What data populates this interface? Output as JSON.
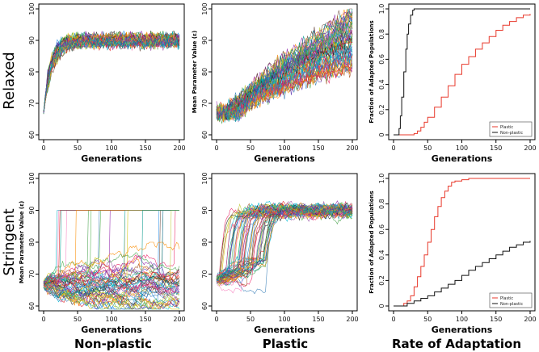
{
  "row_labels": [
    "Relaxed",
    "Stringent"
  ],
  "column_labels": [
    "Non-plastic",
    "Plastic",
    "Rate of Adaptation"
  ],
  "chart_data": [
    {
      "id": "relaxed-nonplastic",
      "type": "line",
      "row": "Relaxed",
      "column": "Non-plastic",
      "xlabel": "Generations",
      "ylabel": "",
      "xlim": [
        0,
        200
      ],
      "ylim": [
        60,
        100
      ],
      "xticks": [
        "0",
        "50",
        "100",
        "150",
        "200"
      ],
      "yticks": [
        "60",
        "70",
        "80",
        "90",
        "100"
      ],
      "series_summary": {
        "n_replicates": 60,
        "start": 67,
        "plateau": 90,
        "noise": 1.8
      }
    },
    {
      "id": "relaxed-plastic",
      "type": "line",
      "row": "Relaxed",
      "column": "Plastic",
      "xlabel": "Generations",
      "ylabel": "Mean Parameter Value (ε)",
      "xlim": [
        0,
        200
      ],
      "ylim": [
        60,
        100
      ],
      "xticks": [
        "0",
        "50",
        "100",
        "150",
        "200"
      ],
      "yticks": [
        "60",
        "70",
        "80",
        "90",
        "100"
      ],
      "series_summary": {
        "n_replicates": 60,
        "start": 67,
        "end_range": [
          80,
          100
        ],
        "noise": 2.5
      }
    },
    {
      "id": "relaxed-rate",
      "type": "line",
      "row": "Relaxed",
      "column": "Rate of Adaptation",
      "xlabel": "Generations",
      "ylabel": "Fraction of Adapted Populations",
      "xlim": [
        0,
        200
      ],
      "ylim": [
        0,
        1
      ],
      "xticks": [
        "0",
        "50",
        "100",
        "150",
        "200"
      ],
      "yticks": [
        "0",
        "0.2",
        "0.4",
        "0.6",
        "0.8",
        "1.0"
      ],
      "legend": {
        "position": "bottom-right",
        "entries": [
          "Plastic",
          "Non-plastic"
        ]
      },
      "series": [
        {
          "name": "Plastic",
          "color": "#e8392b",
          "x": [
            0,
            20,
            30,
            35,
            40,
            45,
            50,
            60,
            70,
            80,
            90,
            100,
            110,
            120,
            130,
            140,
            150,
            160,
            170,
            180,
            190,
            200
          ],
          "values": [
            0,
            0,
            0.01,
            0.03,
            0.06,
            0.1,
            0.14,
            0.22,
            0.3,
            0.39,
            0.48,
            0.56,
            0.62,
            0.68,
            0.73,
            0.78,
            0.83,
            0.87,
            0.9,
            0.93,
            0.95,
            0.96
          ]
        },
        {
          "name": "Non-plastic",
          "color": "#111111",
          "x": [
            0,
            5,
            8,
            10,
            12,
            15,
            18,
            20,
            22,
            25,
            28,
            30,
            200
          ],
          "values": [
            0,
            0,
            0.05,
            0.15,
            0.3,
            0.5,
            0.68,
            0.8,
            0.88,
            0.95,
            0.99,
            1.0,
            1.0
          ]
        }
      ]
    },
    {
      "id": "stringent-nonplastic",
      "type": "line",
      "row": "Stringent",
      "column": "Non-plastic",
      "xlabel": "Generations",
      "ylabel": "Mean Parameter Value (ε)",
      "xlim": [
        0,
        200
      ],
      "ylim": [
        60,
        100
      ],
      "xticks": [
        "0",
        "50",
        "100",
        "150",
        "200"
      ],
      "yticks": [
        "60",
        "70",
        "80",
        "90",
        "100"
      ],
      "series_summary": {
        "n_replicates": 60,
        "start": 67,
        "jump_to": 90,
        "noise": 2.0
      }
    },
    {
      "id": "stringent-plastic",
      "type": "line",
      "row": "Stringent",
      "column": "Plastic",
      "xlabel": "Generations",
      "ylabel": "",
      "xlim": [
        0,
        200
      ],
      "ylim": [
        60,
        100
      ],
      "xticks": [
        "0",
        "50",
        "100",
        "150",
        "200"
      ],
      "yticks": [
        "60",
        "70",
        "80",
        "90",
        "100"
      ],
      "series_summary": {
        "n_replicates": 60,
        "start": 68,
        "plateau": 90,
        "noise": 2.2
      }
    },
    {
      "id": "stringent-rate",
      "type": "line",
      "row": "Stringent",
      "column": "Rate of Adaptation",
      "xlabel": "Generations",
      "ylabel": "Fraction of Adapted Populations",
      "xlim": [
        0,
        200
      ],
      "ylim": [
        0,
        1
      ],
      "xticks": [
        "0",
        "50",
        "100",
        "150",
        "200"
      ],
      "yticks": [
        "0",
        "0.2",
        "0.4",
        "0.6",
        "0.8",
        "1.0"
      ],
      "legend": {
        "position": "bottom-right",
        "entries": [
          "Plastic",
          "Non-plastic"
        ]
      },
      "series": [
        {
          "name": "Plastic",
          "color": "#e8392b",
          "x": [
            0,
            10,
            15,
            20,
            25,
            30,
            35,
            40,
            45,
            50,
            55,
            60,
            65,
            70,
            75,
            80,
            85,
            90,
            100,
            110,
            120,
            200
          ],
          "values": [
            0,
            0,
            0.02,
            0.04,
            0.08,
            0.15,
            0.23,
            0.31,
            0.4,
            0.5,
            0.6,
            0.7,
            0.78,
            0.85,
            0.9,
            0.94,
            0.97,
            0.98,
            0.99,
            1.0,
            1.0,
            1.0
          ]
        },
        {
          "name": "Non-plastic",
          "color": "#111111",
          "x": [
            0,
            15,
            20,
            30,
            40,
            50,
            60,
            70,
            80,
            90,
            100,
            110,
            120,
            130,
            140,
            150,
            160,
            170,
            180,
            190,
            200
          ],
          "values": [
            0,
            0,
            0.02,
            0.04,
            0.06,
            0.08,
            0.11,
            0.14,
            0.17,
            0.2,
            0.24,
            0.28,
            0.31,
            0.34,
            0.37,
            0.4,
            0.43,
            0.46,
            0.48,
            0.5,
            0.51
          ]
        }
      ]
    }
  ]
}
